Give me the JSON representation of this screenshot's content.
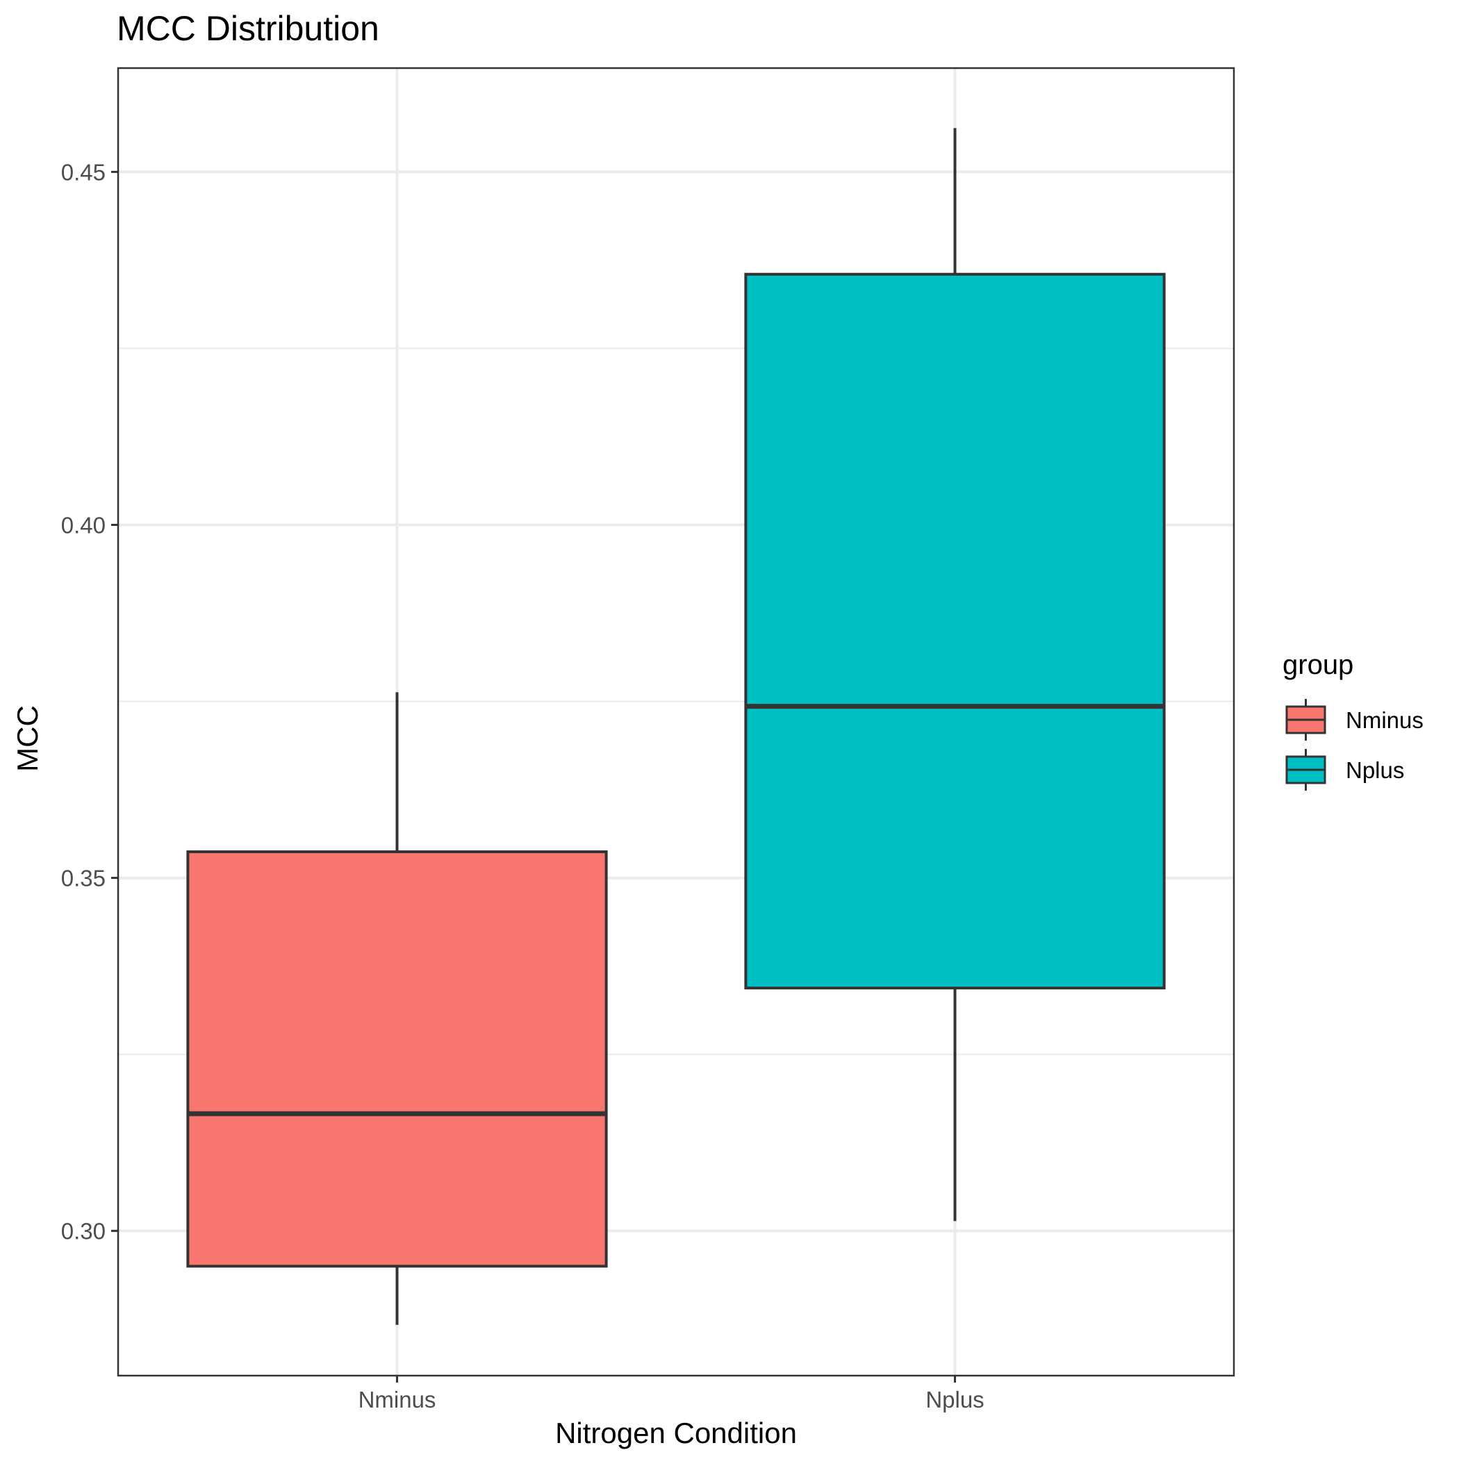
{
  "chart_data": {
    "type": "boxplot",
    "title": "MCC Distribution",
    "xlabel": "Nitrogen Condition",
    "ylabel": "MCC",
    "ylim": [
      0.2795,
      0.4647
    ],
    "y_major_ticks": [
      0.3,
      0.35,
      0.4,
      0.45
    ],
    "y_tick_labels": [
      "0.30",
      "0.35",
      "0.40",
      "0.45"
    ],
    "y_minor_gridlines": [
      0.325,
      0.375,
      0.425
    ],
    "categories": [
      "Nminus",
      "Nplus"
    ],
    "grid": true,
    "legend": {
      "title": "group",
      "position": "right",
      "entries": [
        "Nminus",
        "Nplus"
      ]
    },
    "series": [
      {
        "name": "Nminus",
        "color": "#F8766D",
        "whisker_low": 0.2867,
        "q1": 0.295,
        "median": 0.3166,
        "q3": 0.3537,
        "whisker_high": 0.3763
      },
      {
        "name": "Nplus",
        "color": "#00BFC4",
        "whisker_low": 0.3014,
        "q1": 0.3344,
        "median": 0.3743,
        "q3": 0.4355,
        "whisker_high": 0.4562
      }
    ]
  }
}
